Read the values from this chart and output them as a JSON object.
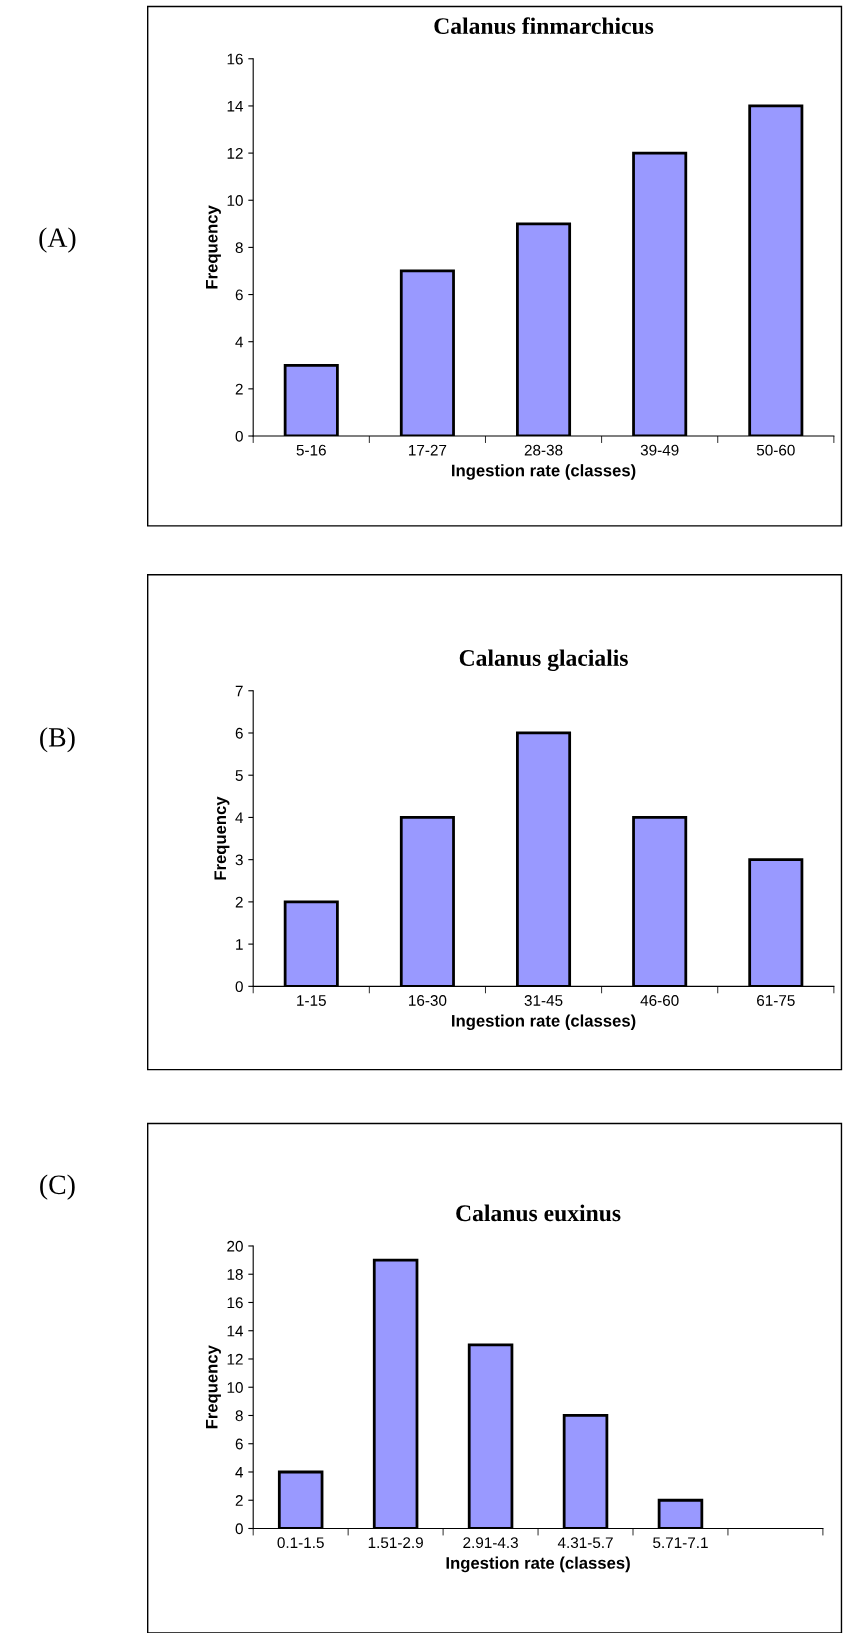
{
  "chart_data": [
    {
      "type": "bar",
      "title": "Calanus finmarchicus",
      "xlabel": "Ingestion rate (classes)",
      "ylabel": "Frequency",
      "annotations": [
        "(A)"
      ],
      "categories": [
        "5-16",
        "17-27",
        "28-38",
        "39-49",
        "50-60"
      ],
      "values": [
        3,
        7,
        9,
        12,
        14
      ],
      "color": "#9999ff",
      "ylim": [
        0,
        16
      ],
      "yticks": [
        0,
        2,
        4,
        6,
        8,
        10,
        12,
        14,
        16
      ],
      "grid": false,
      "legend": false
    },
    {
      "type": "bar",
      "title": "Calanus glacialis",
      "xlabel": "Ingestion rate (classes)",
      "ylabel": "Frequency",
      "annotations": [
        "(B)"
      ],
      "categories": [
        "1-15",
        "16-30",
        "31-45",
        "46-60",
        "61-75"
      ],
      "values": [
        2,
        4,
        6,
        4,
        3
      ],
      "color": "#9999ff",
      "ylim": [
        0,
        7
      ],
      "yticks": [
        0,
        1,
        2,
        3,
        4,
        5,
        6,
        7
      ],
      "grid": false,
      "legend": false
    },
    {
      "type": "bar",
      "title": "Calanus euxinus",
      "xlabel": "Ingestion rate (classes)",
      "ylabel": "Frequency",
      "annotations": [
        "(C)"
      ],
      "categories": [
        "0.1-1.5",
        "1.51-2.9",
        "2.91-4.3",
        "4.31-5.7",
        "5.71-7.1",
        null
      ],
      "values": [
        4,
        19,
        13,
        8,
        2,
        null
      ],
      "color": "#9999ff",
      "ylim": [
        0,
        20
      ],
      "yticks": [
        0,
        2,
        4,
        6,
        8,
        10,
        12,
        14,
        16,
        18,
        20
      ],
      "grid": false,
      "legend": false
    }
  ]
}
